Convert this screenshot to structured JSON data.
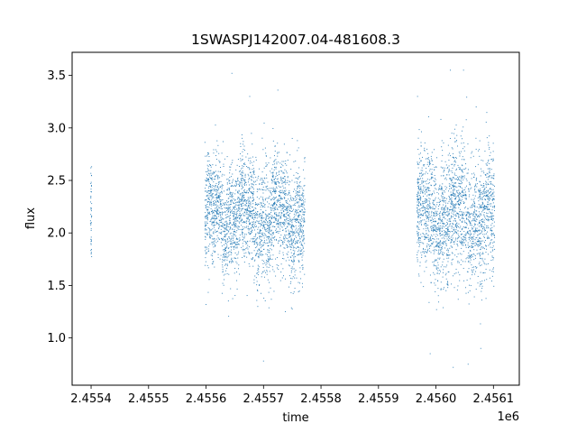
{
  "chart_data": {
    "type": "scatter",
    "title": "1SWASPJ142007.04-481608.3",
    "xlabel": "time",
    "ylabel": "flux",
    "x_offset_label": "1e6",
    "xlim": [
      2455367.0,
      2456145.0
    ],
    "ylim": [
      0.55,
      3.72
    ],
    "x_ticks": [
      2455400,
      2455500,
      2455600,
      2455700,
      2455800,
      2455900,
      2456000,
      2456100
    ],
    "x_tick_labels": [
      "2.4554",
      "2.4555",
      "2.4556",
      "2.4557",
      "2.4558",
      "2.4559",
      "2.4560",
      "2.4561"
    ],
    "y_ticks": [
      1.0,
      1.5,
      2.0,
      2.5,
      3.0,
      3.5
    ],
    "y_tick_labels": [
      "1.0",
      "1.5",
      "2.0",
      "2.5",
      "3.0",
      "3.5"
    ],
    "grid": false,
    "colors": {
      "points": "#1f77b4"
    },
    "segments": [
      {
        "x_start": 2455399,
        "x_end": 2455401,
        "center": 2.2,
        "spread": 0.28
      },
      {
        "x_start": 2455598,
        "x_end": 2455772,
        "center": 2.15,
        "spread": 0.26
      },
      {
        "x_start": 2455967,
        "x_end": 2456102,
        "center": 2.15,
        "spread": 0.3
      }
    ],
    "series": [
      {
        "values": [
          [
            2455399.5,
            2.62
          ],
          [
            2455399.6,
            2.35
          ],
          [
            2455400.0,
            1.92
          ],
          [
            2455400.2,
            1.8
          ],
          [
            2455400.4,
            2.1
          ],
          [
            2455604,
            2.05
          ],
          [
            2455620,
            2.3
          ],
          [
            2455635,
            1.7
          ],
          [
            2455645,
            3.52
          ],
          [
            2455652,
            2.6
          ],
          [
            2455660,
            2.85
          ],
          [
            2455668,
            2.1
          ],
          [
            2455676,
            3.3
          ],
          [
            2455690,
            1.3
          ],
          [
            2455700,
            0.78
          ],
          [
            2455712,
            2.4
          ],
          [
            2455725,
            3.36
          ],
          [
            2455738,
            1.25
          ],
          [
            2455750,
            2.9
          ],
          [
            2455765,
            2.2
          ],
          [
            2455968,
            3.3
          ],
          [
            2455990,
            0.85
          ],
          [
            2456010,
            1.9
          ],
          [
            2456025,
            3.55
          ],
          [
            2456030,
            0.72
          ],
          [
            2456048,
            3.55
          ],
          [
            2456056,
            0.75
          ],
          [
            2456070,
            3.2
          ],
          [
            2456078,
            0.9
          ],
          [
            2456096,
            2.7
          ]
        ]
      }
    ]
  }
}
